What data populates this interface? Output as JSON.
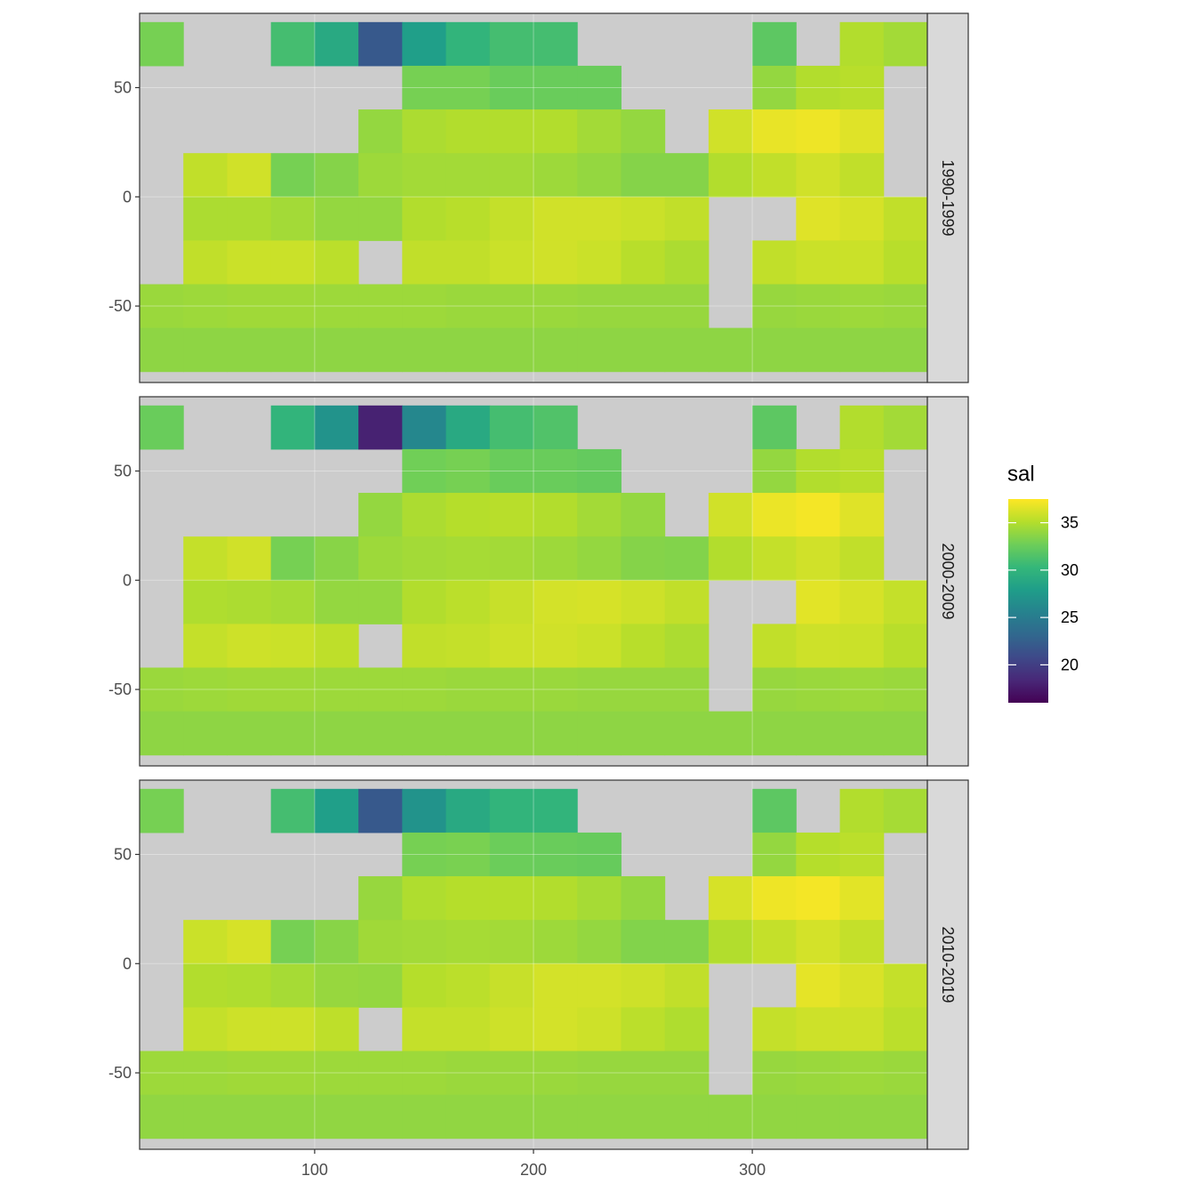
{
  "chart_data": {
    "type": "raster",
    "facets": [
      "1990-1999",
      "2000-2009",
      "2010-2019"
    ],
    "x": [
      30,
      50,
      70,
      90,
      110,
      130,
      150,
      170,
      190,
      210,
      230,
      250,
      270,
      290,
      310,
      330,
      350,
      370
    ],
    "y": [
      70,
      50,
      30,
      10,
      -10,
      -30,
      -50,
      -70
    ],
    "values": [
      [
        [
          33,
          null,
          null,
          31,
          29,
          22,
          28,
          30,
          31,
          31,
          null,
          null,
          null,
          null,
          32,
          null,
          35,
          34.5
        ],
        [
          null,
          null,
          null,
          null,
          null,
          null,
          33,
          33,
          32.5,
          32.5,
          32.5,
          null,
          null,
          null,
          34,
          35,
          35.2,
          null
        ],
        [
          null,
          null,
          null,
          null,
          null,
          34,
          34.8,
          35,
          35,
          35,
          34.5,
          34,
          null,
          36,
          36.8,
          37,
          36.5,
          null
        ],
        [
          null,
          35.5,
          36,
          33,
          33.5,
          34.3,
          34.5,
          34.5,
          34.5,
          34.3,
          34,
          33.5,
          33.5,
          35,
          35.5,
          36,
          35.5,
          null
        ],
        [
          null,
          34.8,
          34.8,
          34.5,
          34,
          34,
          35,
          35.2,
          35.6,
          36,
          36,
          35.8,
          35.5,
          null,
          null,
          36.5,
          36.2,
          35.5
        ],
        [
          null,
          35.5,
          35.8,
          35.8,
          35.3,
          null,
          35.5,
          35.5,
          35.8,
          36,
          35.8,
          35.2,
          34.8,
          null,
          35.5,
          35.8,
          35.8,
          35.2
        ],
        [
          34.2,
          34.3,
          34.4,
          34.4,
          34.3,
          34.3,
          34.3,
          34.2,
          34.2,
          34.2,
          34.1,
          34.1,
          34.1,
          null,
          34.1,
          34.2,
          34.3,
          34.2
        ],
        [
          33.8,
          33.8,
          33.8,
          33.8,
          33.8,
          33.8,
          33.8,
          33.8,
          33.8,
          33.8,
          33.8,
          33.8,
          33.8,
          33.8,
          33.8,
          33.8,
          33.8,
          33.8
        ]
      ],
      [
        [
          32.5,
          null,
          null,
          30,
          27,
          18,
          26,
          29,
          31,
          31.5,
          null,
          null,
          null,
          null,
          32,
          null,
          35,
          34.5
        ],
        [
          null,
          null,
          null,
          null,
          null,
          null,
          32.8,
          33,
          32.5,
          32.5,
          32.3,
          null,
          null,
          null,
          34,
          35,
          35.2,
          null
        ],
        [
          null,
          null,
          null,
          null,
          null,
          34,
          34.8,
          35.1,
          35.2,
          35,
          34.5,
          34,
          null,
          36,
          36.9,
          37.2,
          36.5,
          null
        ],
        [
          null,
          35.6,
          36,
          33,
          33.6,
          34.3,
          34.5,
          34.6,
          34.5,
          34.3,
          34,
          33.5,
          33.4,
          35,
          35.6,
          36,
          35.5,
          null
        ],
        [
          null,
          34.9,
          34.8,
          34.6,
          34,
          34,
          35,
          35.3,
          35.7,
          36.1,
          36.2,
          35.9,
          35.5,
          null,
          null,
          36.6,
          36.2,
          35.6
        ],
        [
          null,
          35.6,
          35.9,
          35.8,
          35.4,
          null,
          35.5,
          35.6,
          35.9,
          36,
          35.8,
          35.2,
          34.8,
          null,
          35.5,
          35.9,
          35.8,
          35.2
        ],
        [
          34.2,
          34.3,
          34.4,
          34.4,
          34.3,
          34.3,
          34.3,
          34.2,
          34.2,
          34.2,
          34.1,
          34.1,
          34.1,
          null,
          34.1,
          34.2,
          34.3,
          34.2
        ],
        [
          33.8,
          33.8,
          33.8,
          33.8,
          33.8,
          33.8,
          33.8,
          33.8,
          33.8,
          33.8,
          33.8,
          33.8,
          33.8,
          33.8,
          33.8,
          33.8,
          33.8,
          33.8
        ]
      ],
      [
        [
          33,
          null,
          null,
          31,
          28,
          22,
          27,
          29,
          30,
          30,
          null,
          null,
          null,
          null,
          32,
          null,
          35,
          34.6
        ],
        [
          null,
          null,
          null,
          null,
          null,
          null,
          33,
          33.1,
          32.6,
          32.5,
          32.4,
          null,
          null,
          null,
          34,
          35.1,
          35.3,
          null
        ],
        [
          null,
          null,
          null,
          null,
          null,
          34.1,
          34.9,
          35.1,
          35.1,
          35,
          34.6,
          34,
          null,
          36.2,
          37,
          37.2,
          36.6,
          null
        ],
        [
          null,
          35.8,
          36.2,
          33,
          33.6,
          34.4,
          34.5,
          34.6,
          34.5,
          34.3,
          34,
          33.4,
          33.4,
          35,
          35.6,
          36.1,
          35.6,
          null
        ],
        [
          null,
          35,
          34.9,
          34.6,
          34.1,
          34,
          35.1,
          35.3,
          35.7,
          36.1,
          36.1,
          35.9,
          35.5,
          null,
          null,
          36.7,
          36.3,
          35.6
        ],
        [
          null,
          35.6,
          35.9,
          35.9,
          35.4,
          null,
          35.6,
          35.6,
          35.9,
          36.1,
          35.9,
          35.3,
          34.9,
          null,
          35.6,
          35.9,
          35.9,
          35.3
        ],
        [
          34.3,
          34.3,
          34.4,
          34.4,
          34.3,
          34.3,
          34.3,
          34.2,
          34.2,
          34.2,
          34.1,
          34.1,
          34.1,
          null,
          34.1,
          34.2,
          34.3,
          34.2
        ],
        [
          33.9,
          33.9,
          33.9,
          33.9,
          33.9,
          33.9,
          33.9,
          33.9,
          33.9,
          33.9,
          33.9,
          33.9,
          33.9,
          33.9,
          33.9,
          33.9,
          33.9,
          33.9
        ]
      ]
    ],
    "xlim": [
      20,
      380
    ],
    "ylim": [
      -85,
      84
    ],
    "xticks": [
      100,
      200,
      300
    ],
    "yticks": [
      50,
      0,
      -50
    ],
    "grid": true,
    "land_color": "#cccccc",
    "legend": {
      "title": "sal",
      "limits": [
        16,
        37.5
      ],
      "ticks": [
        20,
        25,
        30,
        35
      ],
      "colors": [
        "#440154",
        "#482878",
        "#3e4989",
        "#31688e",
        "#26828e",
        "#1f9e89",
        "#35b779",
        "#6ece58",
        "#b5de2b",
        "#fde725"
      ]
    }
  }
}
